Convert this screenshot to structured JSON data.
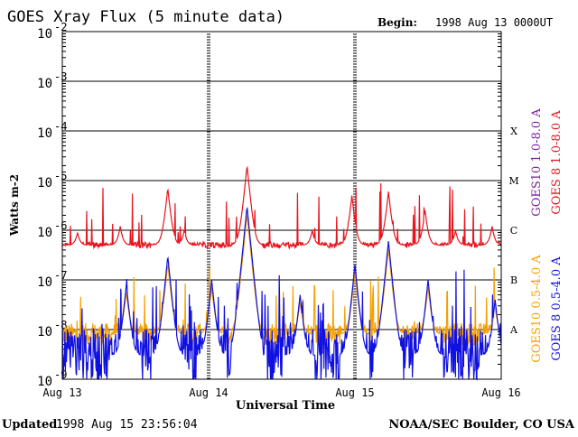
{
  "chart_data": {
    "type": "line",
    "title": "GOES Xray Flux (5 minute data)",
    "begin_label": "Begin:",
    "begin_value": "1998 Aug 13 0000UT",
    "ylabel": "Watts m-2",
    "xlabel": "Universal Time",
    "y_scale": "log",
    "ylim": [
      1e-09,
      0.01
    ],
    "y_ticks": [
      {
        "base": "10",
        "exp": "-2",
        "value": 0.01
      },
      {
        "base": "10",
        "exp": "-3",
        "value": 0.001
      },
      {
        "base": "10",
        "exp": "-4",
        "value": 0.0001
      },
      {
        "base": "10",
        "exp": "-5",
        "value": 1e-05
      },
      {
        "base": "10",
        "exp": "-6",
        "value": 1e-06
      },
      {
        "base": "10",
        "exp": "-7",
        "value": 1e-07
      },
      {
        "base": "10",
        "exp": "-8",
        "value": 1e-08
      },
      {
        "base": "10",
        "exp": "-9",
        "value": 1e-09
      }
    ],
    "x_range_hours": [
      0,
      72
    ],
    "x_ticks": [
      {
        "label": "Aug 13",
        "hour": 0
      },
      {
        "label": "Aug 14",
        "hour": 24
      },
      {
        "label": "Aug 15",
        "hour": 48
      },
      {
        "label": "Aug 16",
        "hour": 72
      }
    ],
    "flare_classes": [
      {
        "label": "X",
        "value": 0.0001
      },
      {
        "label": "M",
        "value": 1e-05
      },
      {
        "label": "C",
        "value": 1e-06
      },
      {
        "label": "B",
        "value": 1e-07
      },
      {
        "label": "A",
        "value": 1e-08
      }
    ],
    "grid": true,
    "legend_placement": "right, vertical",
    "series": [
      {
        "name": "GOES10 1.0-8.0 A",
        "color": "#7a1fa0",
        "values": []
      },
      {
        "name": "GOES 8 1.0-8.0 A",
        "color": "#e8141e",
        "baseline": 5e-07,
        "peaks": [
          {
            "hour": 2.5,
            "value": 9e-07
          },
          {
            "hour": 9.5,
            "value": 1.2e-06
          },
          {
            "hour": 17.3,
            "value": 7e-06
          },
          {
            "hour": 20.0,
            "value": 1e-06
          },
          {
            "hour": 30.3,
            "value": 2e-05
          },
          {
            "hour": 41.0,
            "value": 1e-06
          },
          {
            "hour": 47.5,
            "value": 5e-06
          },
          {
            "hour": 53.5,
            "value": 6e-06
          },
          {
            "hour": 59.5,
            "value": 2.5e-06
          },
          {
            "hour": 64.5,
            "value": 1e-06
          },
          {
            "hour": 70.5,
            "value": 1.2e-06
          }
        ]
      },
      {
        "name": "GOES10 0.5-4.0 A",
        "color": "#f5a000",
        "baseline": 8e-09,
        "values": []
      },
      {
        "name": "GOES 8 0.5-4.0 A",
        "color": "#1010e0",
        "baseline": 3e-09,
        "peaks": [
          {
            "hour": 10.5,
            "value": 8e-08
          },
          {
            "hour": 17.3,
            "value": 3e-07
          },
          {
            "hour": 24.5,
            "value": 1e-07
          },
          {
            "hour": 30.3,
            "value": 3e-06
          },
          {
            "hour": 39.0,
            "value": 5e-08
          },
          {
            "hour": 48.0,
            "value": 2e-07
          },
          {
            "hour": 53.5,
            "value": 6e-07
          },
          {
            "hour": 60.0,
            "value": 1e-07
          },
          {
            "hour": 71.0,
            "value": 4e-08
          }
        ]
      }
    ]
  },
  "footer": {
    "updated_label": "Updated",
    "updated_value": "1998 Aug 15 23:56:04",
    "credit": "NOAA/SEC Boulder, CO USA"
  }
}
